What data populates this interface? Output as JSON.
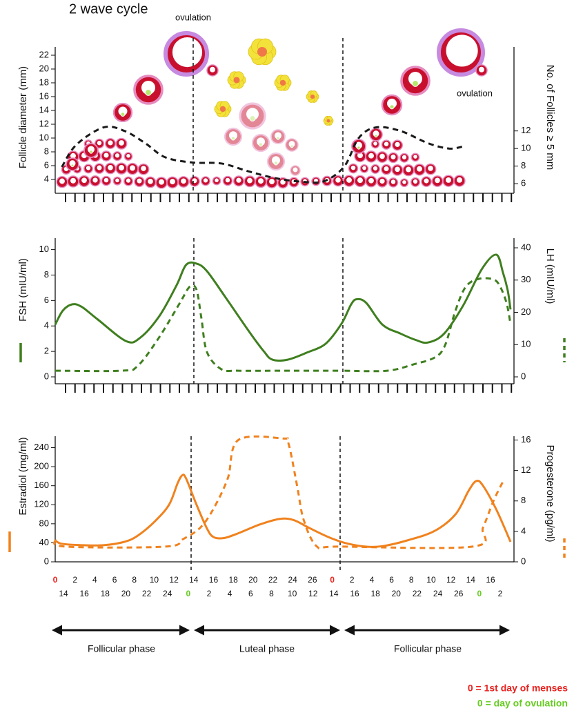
{
  "title": "2 wave cycle",
  "annotations": [
    "ovulation",
    "ovulation"
  ],
  "chart_data": [
    {
      "type": "line",
      "y_label": "Follicle diameter (mm)",
      "y2_label": "No. of Follicles ≥ 5 mm",
      "xlim": [
        0,
        48
      ],
      "ylim": [
        2.5,
        23
      ],
      "yticks": [
        4,
        6,
        8,
        10,
        12,
        14,
        16,
        18,
        20,
        22
      ],
      "y2lim": [
        5.3,
        21.4
      ],
      "y2ticks": [
        6,
        8,
        10,
        12
      ],
      "series": [
        {
          "color": "#1a1a1a",
          "dashed": true,
          "axis": "y2",
          "x": [
            0.7,
            2.2,
            5.1,
            7.3,
            9.5,
            11.6,
            14.5,
            17.5,
            20.4,
            23.3,
            26.2,
            28.4,
            30.5,
            32.0,
            33.8,
            36.4,
            39.3,
            41.5,
            42.9
          ],
          "values": [
            7.9,
            10.4,
            12.4,
            12.0,
            10.6,
            9.0,
            8.4,
            8.3,
            7.4,
            6.6,
            6.2,
            6.3,
            8.0,
            11.2,
            12.4,
            12.0,
            10.6,
            10.0,
            10.2
          ]
        }
      ]
    },
    {
      "type": "line",
      "y_label": "FSH (mIU/ml)",
      "y2_label": "LH (mIU/ml)",
      "xlim": [
        0,
        48
      ],
      "ylim": [
        0,
        10.9
      ],
      "yticks": [
        0,
        2,
        4,
        6,
        8,
        10
      ],
      "y2lim": [
        0,
        43
      ],
      "y2ticks": [
        0,
        10,
        20,
        30,
        40
      ],
      "series": [
        {
          "color": "#3f7f1f",
          "dashed": false,
          "axis": "y",
          "x": [
            0,
            0.8,
            1.8,
            2.8,
            4.5,
            7.5,
            9,
            11,
            12.8,
            13.8,
            14.9,
            16,
            18,
            20.5,
            22,
            22.9,
            24.5,
            26.5,
            28.5,
            30.2,
            31.2,
            31.8,
            32.8,
            34.5,
            36.4,
            38,
            39.3,
            41,
            43,
            45,
            46.5,
            47.2,
            47.7,
            48
          ],
          "values": [
            4.1,
            5.2,
            5.7,
            5.5,
            4.5,
            2.8,
            3.1,
            4.8,
            7.2,
            8.8,
            8.9,
            8.3,
            6.2,
            3.5,
            2.0,
            1.35,
            1.35,
            1.9,
            2.6,
            4.2,
            5.7,
            6.1,
            5.8,
            4.1,
            3.4,
            2.9,
            2.7,
            3.4,
            5.6,
            8.5,
            9.6,
            8.2,
            6.8,
            5.3
          ]
        },
        {
          "color": "#3f7f1f",
          "dashed": true,
          "axis": "y2",
          "x": [
            0,
            7,
            8.7,
            10.9,
            13.1,
            14.2,
            14.9,
            15.4,
            16,
            17.5,
            19.3,
            24,
            30,
            null,
            30.5,
            35,
            37.8,
            40,
            41.1,
            42.2,
            43.3,
            44.7,
            46.2,
            46.9,
            47.6,
            48
          ],
          "values": [
            1.9,
            1.9,
            3.4,
            12,
            22.7,
            28,
            27,
            18.4,
            7.7,
            2.4,
            1.9,
            1.9,
            1.9,
            null,
            1.9,
            1.9,
            3.9,
            6,
            9.8,
            20.6,
            28,
            30.4,
            30.2,
            28,
            22.7,
            16.3
          ]
        }
      ]
    },
    {
      "type": "line",
      "y_label": "Estradiol (mg/ml)",
      "y2_label": "Progesterone (pg/ml)",
      "xlim": [
        0,
        48
      ],
      "ylim": [
        0,
        264
      ],
      "yticks": [
        0,
        40,
        80,
        120,
        160,
        200,
        240
      ],
      "y2lim": [
        0,
        16.5
      ],
      "y2ticks": [
        0,
        4,
        8,
        12,
        16
      ],
      "series": [
        {
          "color": "#f0821e",
          "dashed": false,
          "axis": "y",
          "x": [
            0,
            0.7,
            2.9,
            5.1,
            7.3,
            8.7,
            10.5,
            12,
            12.9,
            13.4,
            13.8,
            14.9,
            16,
            16.7,
            17.8,
            19.3,
            21.5,
            23.6,
            25.1,
            26.9,
            28.7,
            30.5,
            32.7,
            34.5,
            37.1,
            40,
            42.2,
            43.6,
            44.4,
            45.1,
            46.5,
            48
          ],
          "values": [
            45,
            38,
            35,
            35,
            42,
            55,
            85,
            120,
            165,
            182,
            175,
            120,
            70,
            52,
            50,
            60,
            78,
            90,
            88,
            70,
            53,
            40,
            32,
            33,
            45,
            65,
            100,
            150,
            170,
            160,
            110,
            42
          ]
        },
        {
          "color": "#f0821e",
          "dashed": true,
          "axis": "y2",
          "x": [
            0,
            1.1,
            11.6,
            13.5,
            15.3,
            16.7,
            18.2,
            19.3,
            24,
            24.6,
            25.5,
            26.2,
            27.6,
            29.8,
            44,
            45.1,
            46.2,
            47.3
          ],
          "values": [
            2.9,
            2,
            2,
            3,
            4.5,
            7,
            11,
            16,
            16.2,
            15.5,
            10,
            5.5,
            2,
            2,
            2,
            4.5,
            8,
            10.8
          ]
        }
      ]
    }
  ],
  "day_labels": {
    "cycle_day": [
      0,
      2,
      4,
      6,
      8,
      10,
      12,
      14,
      16,
      18,
      20,
      22,
      24,
      26,
      0,
      2,
      4,
      6,
      8,
      10,
      12,
      14,
      16
    ],
    "ovulation_day": [
      14,
      16,
      18,
      20,
      22,
      24,
      0,
      2,
      4,
      6,
      8,
      10,
      12,
      14,
      16,
      18,
      20,
      22,
      24,
      26,
      0,
      2
    ]
  },
  "phases": [
    "Follicular phase",
    "Luteal phase",
    "Follicular phase"
  ],
  "key": [
    {
      "text": "0 = 1st day of menses",
      "color": "#e8231f"
    },
    {
      "text": "0 = day of ovulation",
      "color": "#66cc22"
    }
  ]
}
